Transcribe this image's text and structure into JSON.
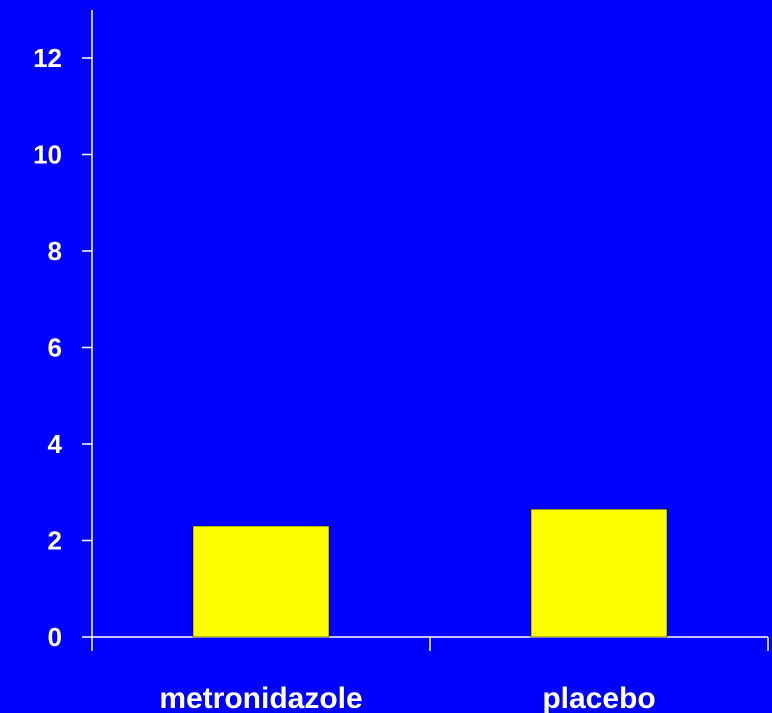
{
  "chart_data": {
    "type": "bar",
    "categories": [
      "metronidazole",
      "placebo"
    ],
    "values": [
      2.3,
      2.65
    ],
    "title": "",
    "xlabel": "",
    "ylabel": "",
    "ylim": [
      0,
      12
    ],
    "yticks": [
      "0",
      "2",
      "4",
      "6",
      "8",
      "10",
      "12"
    ],
    "grid": false,
    "colors": {
      "background": "#0000FF",
      "bar": "#FFFF00",
      "axis": "#FFFFFF",
      "text": "#FFFFFF"
    }
  }
}
